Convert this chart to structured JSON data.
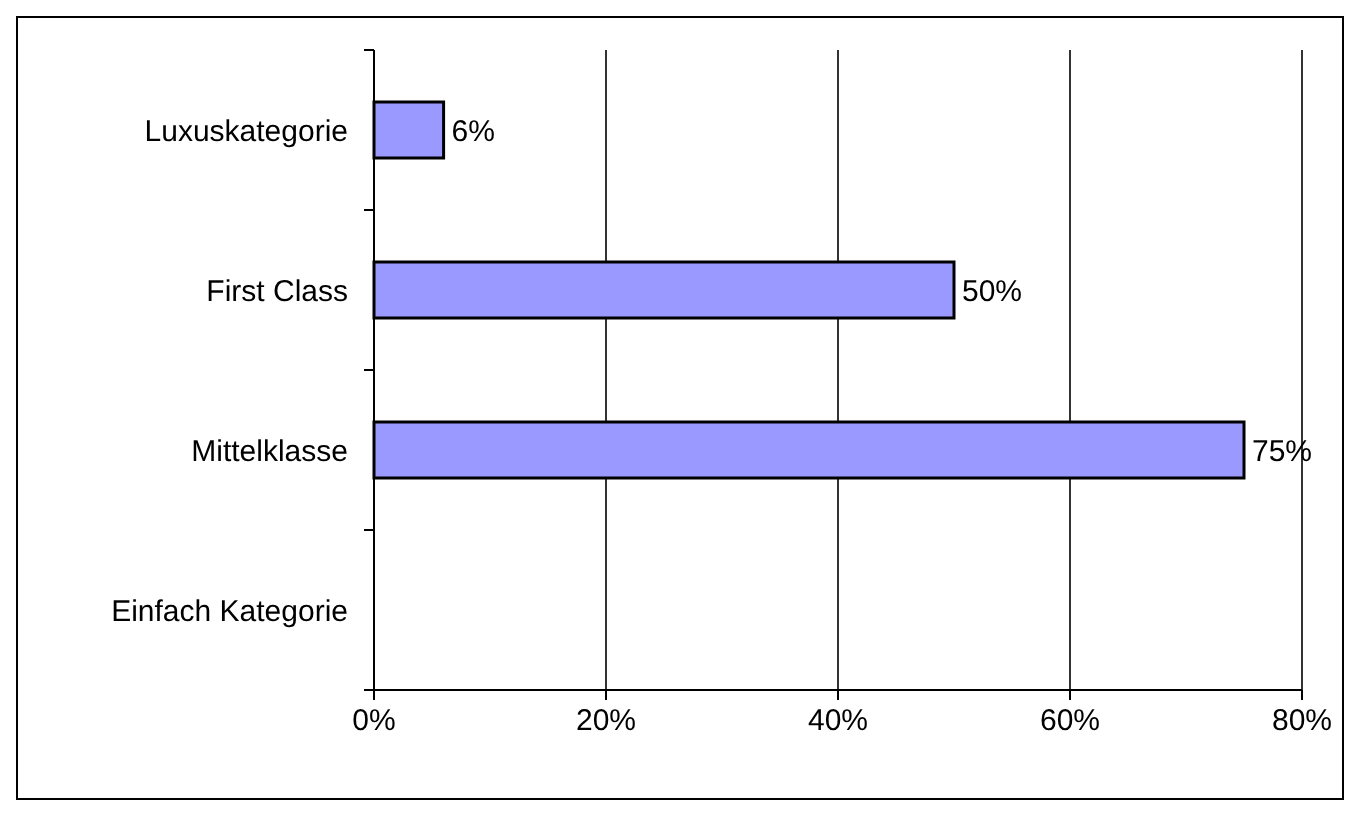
{
  "chart_data": {
    "type": "bar",
    "orientation": "horizontal",
    "categories": [
      "Luxuskategorie",
      "First Class",
      "Mittelklasse",
      "Einfach Kategorie"
    ],
    "values": [
      6,
      50,
      75,
      null
    ],
    "value_labels": [
      "6%",
      "50%",
      "75%",
      null
    ],
    "color": "#9999ff",
    "xlim": [
      0,
      80
    ],
    "xticks": [
      {
        "value": 0,
        "label": "0%"
      },
      {
        "value": 20,
        "label": "20%"
      },
      {
        "value": 40,
        "label": "40%"
      },
      {
        "value": 60,
        "label": "60%"
      },
      {
        "value": 80,
        "label": "80%"
      }
    ],
    "grid": "x"
  }
}
